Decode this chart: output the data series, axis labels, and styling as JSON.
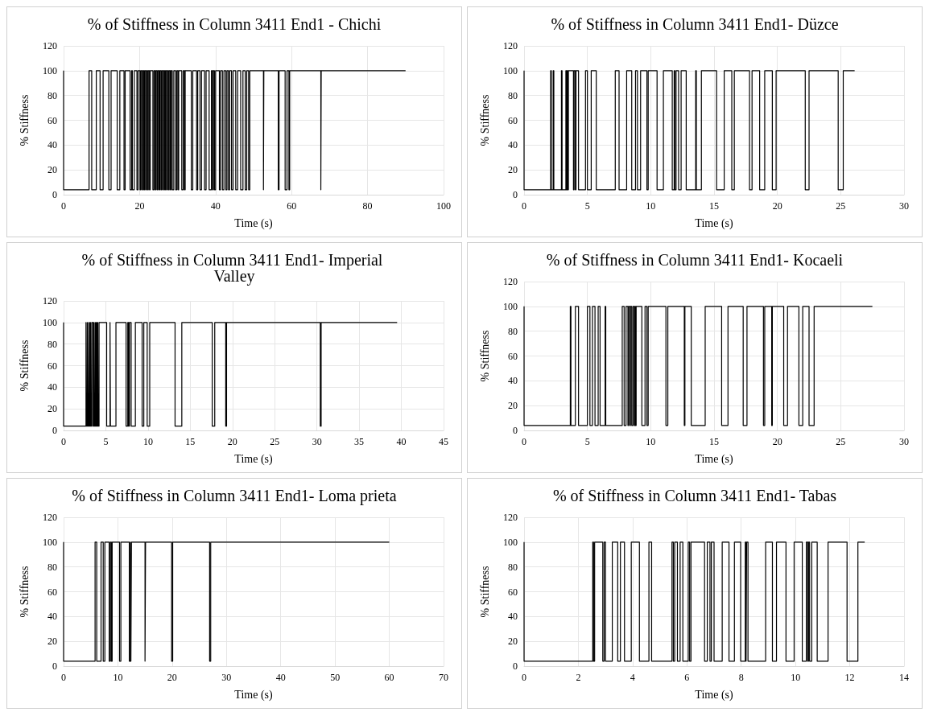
{
  "chart_data": [
    {
      "type": "step",
      "title": "% of Stiffness in Column 3411 End1 - Chichi",
      "xlabel": "Time (s)",
      "ylabel": "% Stiffness",
      "color": "#000000",
      "marker": "none",
      "grid": true,
      "xlim": [
        0,
        100
      ],
      "xticks": [
        0,
        20,
        40,
        60,
        80,
        100
      ],
      "ylim": [
        0,
        120
      ],
      "yticks": [
        0,
        20,
        40,
        60,
        80,
        100,
        120
      ],
      "x": [
        0,
        0,
        6.7,
        7.4,
        8.6,
        9.6,
        10.4,
        11.9,
        12.5,
        14.1,
        14.8,
        15.9,
        16.2,
        17.5,
        17.9,
        18.1,
        18.6,
        19.3,
        19.6,
        20.1,
        20.3,
        20.6,
        20.8,
        21.1,
        21.3,
        21.6,
        21.8,
        22.1,
        22.3,
        22.6,
        22.8,
        23.5,
        23.8,
        24.1,
        24.3,
        24.6,
        24.8,
        25.1,
        25.3,
        25.6,
        25.8,
        26.1,
        26.3,
        26.6,
        26.8,
        27.1,
        27.3,
        27.6,
        27.8,
        28.1,
        28.3,
        28.6,
        29.0,
        29.5,
        29.8,
        30.1,
        30.3,
        31.1,
        31.5,
        31.8,
        32.0,
        33.6,
        34.0,
        35.0,
        35.3,
        35.9,
        36.3,
        37.1,
        37.5,
        38.3,
        38.9,
        39.2,
        39.4,
        39.7,
        40.0,
        41.0,
        41.3,
        41.8,
        42.2,
        42.7,
        43.0,
        43.4,
        43.7,
        44.2,
        44.6,
        45.3,
        45.8,
        46.6,
        47.2,
        47.8,
        48.2,
        48.7,
        49.0,
        52.6,
        52.7,
        56.5,
        56.7,
        58.3,
        58.8,
        59.3,
        59.5,
        67.7,
        67.8,
        90
      ],
      "values": [
        100,
        4,
        100,
        4,
        100,
        4,
        100,
        4,
        100,
        4,
        100,
        4,
        100,
        4,
        100,
        4,
        100,
        4,
        100,
        4,
        100,
        4,
        100,
        4,
        100,
        4,
        100,
        4,
        100,
        4,
        100,
        4,
        100,
        4,
        100,
        4,
        100,
        4,
        100,
        4,
        100,
        4,
        100,
        4,
        100,
        4,
        100,
        4,
        100,
        4,
        100,
        4,
        100,
        4,
        100,
        4,
        100,
        4,
        100,
        4,
        100,
        4,
        100,
        4,
        100,
        4,
        100,
        4,
        100,
        4,
        100,
        4,
        100,
        4,
        100,
        4,
        100,
        4,
        100,
        4,
        100,
        4,
        100,
        4,
        100,
        4,
        100,
        4,
        100,
        4,
        100,
        4,
        100,
        4,
        100,
        4,
        100,
        4,
        100,
        4,
        100,
        4,
        100,
        100
      ]
    },
    {
      "type": "step",
      "title": "% of Stiffness in Column 3411 End1- Düzce",
      "xlabel": "Time (s)",
      "ylabel": "% Stiffness",
      "color": "#000000",
      "marker": "none",
      "grid": true,
      "xlim": [
        0,
        30
      ],
      "xticks": [
        0,
        5,
        10,
        15,
        20,
        25,
        30
      ],
      "ylim": [
        0,
        120
      ],
      "yticks": [
        0,
        20,
        40,
        60,
        80,
        100,
        120
      ],
      "x": [
        0,
        0,
        2.1,
        2.15,
        2.3,
        2.35,
        2.95,
        3.0,
        3.3,
        3.35,
        3.4,
        3.45,
        3.5,
        3.9,
        3.95,
        4.05,
        4.1,
        4.3,
        4.85,
        5.0,
        5.3,
        5.7,
        7.2,
        7.5,
        8.1,
        8.5,
        8.8,
        8.95,
        9.2,
        9.7,
        9.8,
        10.5,
        11.0,
        11.7,
        11.85,
        11.9,
        12.0,
        12.2,
        12.4,
        12.8,
        13.55,
        13.6,
        14.0,
        15.2,
        15.8,
        16.4,
        16.6,
        17.8,
        18.0,
        18.6,
        19.0,
        19.6,
        19.9,
        22.2,
        22.5,
        24.8,
        25.2,
        26.1
      ],
      "values": [
        100,
        4,
        100,
        4,
        100,
        4,
        100,
        4,
        100,
        4,
        100,
        4,
        100,
        4,
        100,
        4,
        100,
        4,
        100,
        4,
        100,
        4,
        100,
        4,
        100,
        4,
        100,
        4,
        100,
        4,
        100,
        4,
        100,
        4,
        100,
        4,
        100,
        4,
        100,
        4,
        100,
        4,
        100,
        4,
        100,
        4,
        100,
        4,
        100,
        4,
        100,
        4,
        100,
        4,
        100,
        4,
        100,
        100
      ]
    },
    {
      "type": "step",
      "title": "% of Stiffness in Column 3411 End1- Imperial Valley",
      "xlabel": "Time (s)",
      "ylabel": "% Stiffness",
      "color": "#000000",
      "marker": "none",
      "grid": true,
      "xlim": [
        0,
        45
      ],
      "xticks": [
        0,
        5,
        10,
        15,
        20,
        25,
        30,
        35,
        40,
        45
      ],
      "ylim": [
        0,
        120
      ],
      "yticks": [
        0,
        20,
        40,
        60,
        80,
        100,
        120
      ],
      "x": [
        0,
        0,
        2.65,
        2.7,
        2.8,
        2.85,
        2.95,
        3.0,
        3.1,
        3.15,
        3.2,
        3.25,
        3.35,
        3.5,
        3.6,
        3.65,
        3.75,
        3.8,
        3.85,
        3.9,
        3.95,
        4.0,
        4.05,
        4.1,
        4.2,
        5.1,
        5.5,
        5.55,
        6.2,
        7.4,
        7.6,
        7.7,
        7.8,
        8.0,
        8.5,
        9.3,
        9.5,
        9.9,
        10.2,
        13.2,
        14.0,
        17.6,
        17.9,
        19.2,
        19.3,
        30.4,
        30.5,
        39.5
      ],
      "values": [
        100,
        4,
        100,
        4,
        100,
        4,
        100,
        4,
        100,
        4,
        100,
        4,
        100,
        4,
        100,
        4,
        100,
        4,
        100,
        4,
        100,
        4,
        100,
        4,
        100,
        4,
        100,
        4,
        100,
        4,
        100,
        4,
        100,
        4,
        100,
        4,
        100,
        4,
        100,
        4,
        100,
        4,
        100,
        4,
        100,
        4,
        100,
        100
      ]
    },
    {
      "type": "step",
      "title": "% of Stiffness in Column 3411 End1- Kocaeli",
      "xlabel": "Time (s)",
      "ylabel": "% Stiffness",
      "color": "#000000",
      "marker": "none",
      "grid": true,
      "xlim": [
        0,
        30
      ],
      "xticks": [
        0,
        5,
        10,
        15,
        20,
        25,
        30
      ],
      "ylim": [
        0,
        120
      ],
      "yticks": [
        0,
        20,
        40,
        60,
        80,
        100,
        120
      ],
      "x": [
        0,
        0,
        3.65,
        3.7,
        4.05,
        4.3,
        5.0,
        5.2,
        5.4,
        5.6,
        5.85,
        6.0,
        6.4,
        6.45,
        7.75,
        7.9,
        8.05,
        8.2,
        8.25,
        8.35,
        8.4,
        8.5,
        8.6,
        8.7,
        8.75,
        8.8,
        8.85,
        9.3,
        9.55,
        9.7,
        9.8,
        11.2,
        11.35,
        12.65,
        12.7,
        13.2,
        14.3,
        15.6,
        16.1,
        17.3,
        17.6,
        18.9,
        19.0,
        19.55,
        19.6,
        20.5,
        20.8,
        21.7,
        22.0,
        22.5,
        22.9,
        27.5
      ],
      "values": [
        100,
        4,
        100,
        4,
        100,
        4,
        100,
        4,
        100,
        4,
        100,
        4,
        100,
        4,
        100,
        4,
        100,
        4,
        100,
        4,
        100,
        4,
        100,
        4,
        100,
        4,
        100,
        4,
        100,
        4,
        100,
        4,
        100,
        4,
        100,
        4,
        100,
        4,
        100,
        4,
        100,
        4,
        100,
        4,
        100,
        4,
        100,
        4,
        100,
        4,
        100,
        100
      ]
    },
    {
      "type": "step",
      "title": "% of Stiffness in Column 3411 End1- Loma prieta",
      "xlabel": "Time (s)",
      "ylabel": "% Stiffness",
      "color": "#000000",
      "marker": "none",
      "grid": true,
      "xlim": [
        0,
        70
      ],
      "xticks": [
        0,
        10,
        20,
        30,
        40,
        50,
        60,
        70
      ],
      "ylim": [
        0,
        120
      ],
      "yticks": [
        0,
        20,
        40,
        60,
        80,
        100,
        120
      ],
      "x": [
        0,
        0,
        5.8,
        6.1,
        6.9,
        7.3,
        7.6,
        8.4,
        8.6,
        8.8,
        8.95,
        10.3,
        10.55,
        12.1,
        12.3,
        12.4,
        12.5,
        15.0,
        15.1,
        19.9,
        20.1,
        26.9,
        27.1,
        60
      ],
      "values": [
        100,
        4,
        100,
        4,
        100,
        4,
        100,
        4,
        100,
        4,
        100,
        4,
        100,
        4,
        100,
        4,
        100,
        4,
        100,
        4,
        100,
        4,
        100,
        100
      ]
    },
    {
      "type": "step",
      "title": "% of Stiffness in Column 3411 End1- Tabas",
      "xlabel": "Time (s)",
      "ylabel": "% Stiffness",
      "color": "#000000",
      "marker": "none",
      "grid": true,
      "xlim": [
        0,
        14
      ],
      "xticks": [
        0,
        2,
        4,
        6,
        8,
        10,
        12,
        14
      ],
      "ylim": [
        0,
        120
      ],
      "yticks": [
        0,
        20,
        40,
        60,
        80,
        100,
        120
      ],
      "x": [
        0,
        0,
        2.53,
        2.56,
        2.6,
        2.9,
        2.95,
        3.0,
        3.25,
        3.45,
        3.55,
        3.7,
        3.95,
        4.25,
        4.6,
        4.7,
        5.45,
        5.5,
        5.55,
        5.65,
        5.75,
        5.85,
        6.05,
        6.1,
        6.15,
        6.65,
        6.75,
        6.85,
        6.9,
        7.0,
        7.3,
        7.55,
        7.75,
        7.98,
        8.15,
        8.18,
        8.2,
        8.25,
        8.9,
        9.15,
        9.3,
        9.65,
        9.95,
        10.25,
        10.4,
        10.45,
        10.48,
        10.52,
        10.6,
        10.8,
        11.2,
        11.9,
        12.3,
        12.55
      ],
      "values": [
        100,
        4,
        100,
        4,
        100,
        4,
        100,
        4,
        100,
        4,
        100,
        4,
        100,
        4,
        100,
        4,
        100,
        4,
        100,
        4,
        100,
        4,
        100,
        4,
        100,
        4,
        100,
        4,
        100,
        4,
        100,
        4,
        100,
        4,
        100,
        4,
        100,
        4,
        100,
        4,
        100,
        4,
        100,
        4,
        100,
        4,
        100,
        4,
        100,
        4,
        100,
        4,
        100,
        100
      ]
    }
  ]
}
